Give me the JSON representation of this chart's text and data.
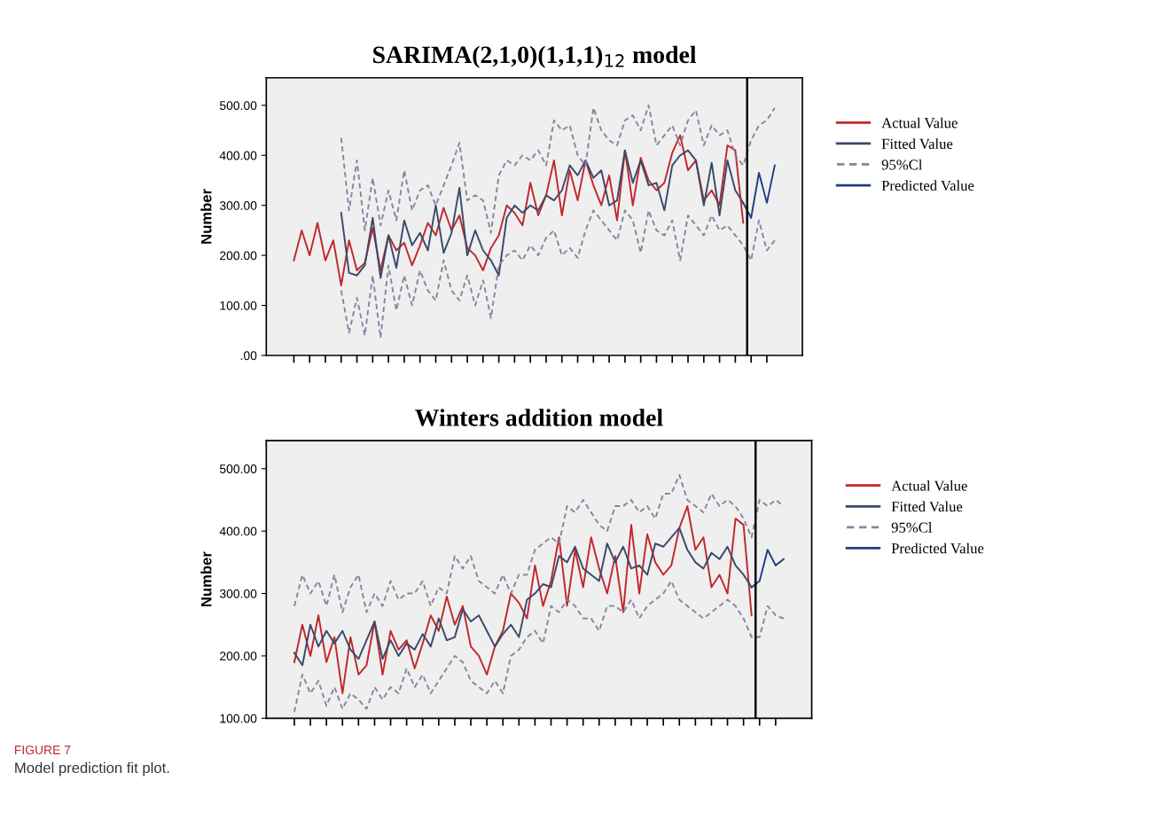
{
  "chart_data": [
    {
      "type": "line",
      "title": "SARIMA(2,1,0)(1,1,1)$_{12}$ model",
      "ylabel": "Number",
      "ylim": [
        0,
        555
      ],
      "categories": [
        null,
        null,
        null,
        null,
        null,
        null,
        null,
        null,
        null,
        null,
        null,
        null,
        null,
        null,
        null,
        null,
        null,
        null,
        null,
        null,
        null,
        null,
        null,
        null,
        null,
        null,
        null,
        null,
        null,
        null,
        null,
        null,
        null,
        null,
        null,
        null,
        null,
        null,
        null,
        null,
        null,
        null,
        null,
        null,
        null,
        null,
        null,
        null,
        null,
        null,
        null,
        null,
        null,
        null,
        null,
        null,
        null,
        null,
        null,
        null,
        null,
        null
      ],
      "yticks": [
        {
          "value": 0,
          "label": ".00"
        },
        {
          "value": 100,
          "label": "100.00"
        },
        {
          "value": 200,
          "label": "200.00"
        },
        {
          "value": 300,
          "label": "300.00"
        },
        {
          "value": 400,
          "label": "400.00"
        },
        {
          "value": 500,
          "label": "500.00"
        }
      ],
      "grid": false,
      "legend": "right",
      "marker": "none",
      "series": [
        {
          "name": "Actual Value",
          "color": "#c0282d",
          "line_style": "solid",
          "values": [
            190,
            250,
            200,
            265,
            190,
            230,
            140,
            230,
            170,
            185,
            255,
            170,
            240,
            210,
            225,
            180,
            220,
            265,
            240,
            295,
            250,
            280,
            215,
            200,
            170,
            215,
            240,
            300,
            285,
            260,
            345,
            280,
            320,
            390,
            280,
            370,
            310,
            390,
            340,
            300,
            360,
            270,
            410,
            300,
            395,
            350,
            330,
            345,
            405,
            440,
            370,
            390,
            310,
            330,
            300,
            420,
            410,
            265,
            null,
            null,
            null,
            null
          ]
        },
        {
          "name": "Fitted Value",
          "color": "#3a4a6b",
          "line_style": "solid",
          "values": [
            null,
            null,
            null,
            null,
            null,
            null,
            285,
            165,
            160,
            180,
            275,
            155,
            240,
            175,
            270,
            220,
            245,
            210,
            300,
            205,
            245,
            335,
            200,
            250,
            210,
            190,
            160,
            275,
            300,
            285,
            300,
            290,
            320,
            310,
            330,
            380,
            360,
            390,
            355,
            370,
            300,
            310,
            410,
            345,
            390,
            340,
            345,
            290,
            380,
            400,
            410,
            390,
            300,
            385,
            280,
            390,
            330,
            305,
            null,
            null,
            null,
            null
          ]
        },
        {
          "name": "95%Cl",
          "color": "#8a84a0",
          "line_style": "dashed",
          "values": [
            null,
            null,
            null,
            null,
            null,
            null,
            435,
            290,
            390,
            250,
            355,
            260,
            330,
            270,
            370,
            290,
            330,
            340,
            300,
            340,
            380,
            425,
            310,
            320,
            310,
            245,
            360,
            390,
            380,
            400,
            390,
            410,
            380,
            470,
            450,
            460,
            400,
            380,
            495,
            450,
            430,
            420,
            470,
            480,
            450,
            500,
            420,
            440,
            460,
            420,
            470,
            490,
            420,
            460,
            440,
            450,
            400,
            380,
            430,
            460,
            470,
            495
          ]
        },
        {
          "color": "#8a84a0",
          "line_style": "dashed",
          "values": [
            null,
            null,
            null,
            null,
            null,
            null,
            130,
            45,
            115,
            40,
            160,
            35,
            180,
            90,
            160,
            100,
            170,
            130,
            110,
            190,
            130,
            110,
            160,
            100,
            150,
            75,
            180,
            200,
            210,
            190,
            220,
            200,
            235,
            250,
            200,
            215,
            195,
            250,
            290,
            270,
            250,
            230,
            290,
            270,
            205,
            290,
            250,
            240,
            270,
            190,
            280,
            260,
            240,
            280,
            250,
            260,
            240,
            220,
            190,
            270,
            210,
            230
          ]
        },
        {
          "name": "Predicted Value",
          "color": "#1f3f7f",
          "line_style": "solid",
          "values": [
            null,
            null,
            null,
            null,
            null,
            null,
            null,
            null,
            null,
            null,
            null,
            null,
            null,
            null,
            null,
            null,
            null,
            null,
            null,
            null,
            null,
            null,
            null,
            null,
            null,
            null,
            null,
            null,
            null,
            null,
            null,
            null,
            null,
            null,
            null,
            null,
            null,
            null,
            null,
            null,
            null,
            null,
            null,
            null,
            null,
            null,
            null,
            null,
            null,
            null,
            null,
            null,
            null,
            null,
            null,
            null,
            null,
            305,
            275,
            365,
            305,
            380
          ]
        }
      ]
    },
    {
      "type": "line",
      "title": "Winters addition model",
      "ylabel": "Number",
      "ylim": [
        100,
        545
      ],
      "categories": [
        null,
        null,
        null,
        null,
        null,
        null,
        null,
        null,
        null,
        null,
        null,
        null,
        null,
        null,
        null,
        null,
        null,
        null,
        null,
        null,
        null,
        null,
        null,
        null,
        null,
        null,
        null,
        null,
        null,
        null,
        null,
        null,
        null,
        null,
        null,
        null,
        null,
        null,
        null,
        null,
        null,
        null,
        null,
        null,
        null,
        null,
        null,
        null,
        null,
        null,
        null,
        null,
        null,
        null,
        null,
        null,
        null,
        null,
        null,
        null,
        null,
        null
      ],
      "yticks": [
        {
          "value": 100,
          "label": "100.00"
        },
        {
          "value": 200,
          "label": "200.00"
        },
        {
          "value": 300,
          "label": "300.00"
        },
        {
          "value": 400,
          "label": "400.00"
        },
        {
          "value": 500,
          "label": "500.00"
        }
      ],
      "grid": false,
      "legend": "right",
      "marker": "none",
      "annotations": [
        "FIGURE 7",
        "Model prediction fit plot."
      ],
      "series": [
        {
          "name": "Actual Value",
          "color": "#c0282d",
          "line_style": "solid",
          "values": [
            190,
            250,
            200,
            265,
            190,
            230,
            140,
            230,
            170,
            185,
            255,
            170,
            240,
            210,
            225,
            180,
            220,
            265,
            240,
            295,
            250,
            280,
            215,
            200,
            170,
            215,
            240,
            300,
            285,
            260,
            345,
            280,
            320,
            390,
            280,
            370,
            310,
            390,
            340,
            300,
            360,
            270,
            410,
            300,
            395,
            350,
            330,
            345,
            405,
            440,
            370,
            390,
            310,
            330,
            300,
            420,
            410,
            265,
            null,
            null,
            null,
            null
          ]
        },
        {
          "name": "Fitted Value",
          "color": "#3a4a6b",
          "line_style": "solid",
          "values": [
            205,
            185,
            250,
            215,
            240,
            220,
            240,
            210,
            195,
            225,
            255,
            195,
            225,
            200,
            220,
            210,
            235,
            215,
            260,
            225,
            230,
            275,
            255,
            265,
            240,
            215,
            235,
            250,
            230,
            290,
            300,
            315,
            310,
            360,
            350,
            375,
            340,
            330,
            320,
            380,
            350,
            375,
            340,
            345,
            330,
            380,
            375,
            390,
            405,
            370,
            350,
            340,
            365,
            355,
            375,
            345,
            330,
            310,
            null,
            null,
            null,
            null
          ]
        },
        {
          "name": "95%Cl",
          "color": "#8a84a0",
          "line_style": "dashed",
          "values": [
            280,
            330,
            300,
            320,
            280,
            330,
            270,
            310,
            330,
            270,
            300,
            280,
            320,
            290,
            300,
            300,
            320,
            280,
            310,
            300,
            360,
            340,
            360,
            320,
            310,
            300,
            330,
            300,
            330,
            330,
            370,
            380,
            390,
            380,
            440,
            430,
            450,
            430,
            410,
            400,
            440,
            440,
            450,
            430,
            440,
            420,
            460,
            460,
            490,
            450,
            440,
            430,
            460,
            440,
            450,
            440,
            420,
            390,
            450,
            440,
            450,
            440
          ]
        },
        {
          "color": "#8a84a0",
          "line_style": "dashed",
          "values": [
            110,
            170,
            140,
            160,
            120,
            150,
            115,
            140,
            130,
            115,
            150,
            130,
            150,
            140,
            180,
            150,
            170,
            140,
            160,
            180,
            200,
            190,
            160,
            150,
            140,
            160,
            140,
            200,
            210,
            230,
            240,
            220,
            280,
            270,
            290,
            280,
            260,
            260,
            240,
            280,
            280,
            270,
            290,
            260,
            280,
            290,
            300,
            320,
            290,
            280,
            270,
            260,
            270,
            280,
            290,
            280,
            260,
            230,
            230,
            280,
            265,
            260
          ]
        },
        {
          "name": "Predicted Value",
          "color": "#1f3f7f",
          "line_style": "solid",
          "values": [
            null,
            null,
            null,
            null,
            null,
            null,
            null,
            null,
            null,
            null,
            null,
            null,
            null,
            null,
            null,
            null,
            null,
            null,
            null,
            null,
            null,
            null,
            null,
            null,
            null,
            null,
            null,
            null,
            null,
            null,
            null,
            null,
            null,
            null,
            null,
            null,
            null,
            null,
            null,
            null,
            null,
            null,
            null,
            null,
            null,
            null,
            null,
            null,
            null,
            null,
            null,
            null,
            null,
            null,
            null,
            null,
            null,
            310,
            320,
            370,
            345,
            355
          ]
        }
      ]
    }
  ]
}
